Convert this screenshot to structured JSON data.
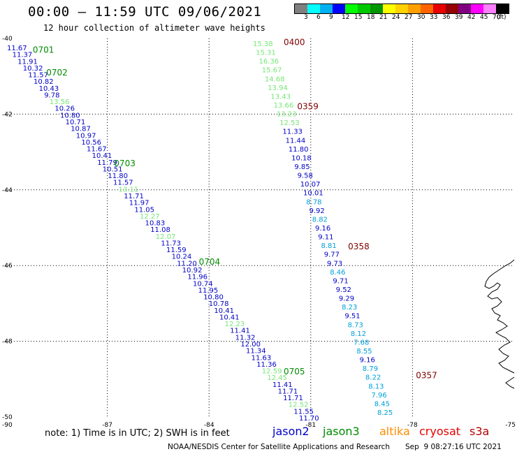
{
  "header": {
    "title": "00:00 – 11:59 UTC 09/06/2021",
    "subtitle": "12 hour collection of altimeter wave heights"
  },
  "legend": {
    "unit": "(ft)",
    "colors": [
      "#808080",
      "#00ffff",
      "#00b0f0",
      "#0000ff",
      "#00ff00",
      "#00c800",
      "#009600",
      "#ffff00",
      "#ffd200",
      "#ffa000",
      "#ff6400",
      "#e60000",
      "#960000",
      "#800080",
      "#ff00ff",
      "#ff80ff",
      "#000000"
    ],
    "labels": [
      "3",
      "6",
      "9",
      "12",
      "15",
      "18",
      "21",
      "24",
      "27",
      "30",
      "33",
      "36",
      "39",
      "42",
      "45",
      "70"
    ]
  },
  "axes": {
    "x_ticks": [
      {
        "lon": -90,
        "label": "-90"
      },
      {
        "lon": -87,
        "label": "-87"
      },
      {
        "lon": -84,
        "label": "-84"
      },
      {
        "lon": -81,
        "label": "-81"
      },
      {
        "lon": -78,
        "label": "-78"
      },
      {
        "lon": -75,
        "label": "-75"
      }
    ],
    "y_ticks": [
      {
        "lat": -40,
        "label": "-40"
      },
      {
        "lat": -42,
        "label": "-42"
      },
      {
        "lat": -44,
        "label": "-44"
      },
      {
        "lat": -46,
        "label": "-46"
      },
      {
        "lat": -48,
        "label": "-48"
      },
      {
        "lat": -50,
        "label": "-50"
      }
    ]
  },
  "palette": {
    "jason2": "#0000c8",
    "jason3": "#008c00",
    "altika": "#ff8c00",
    "cryosat": "#e60000",
    "s3a": "#b40000",
    "time_west": "#008c00",
    "time_east": "#800000",
    "swh_blue": "#0000c8",
    "swh_cyan": "#00a0d8",
    "swh_green": "#78e678"
  },
  "tracks": [
    {
      "name": "west",
      "times": [
        {
          "text": "0701",
          "lon": -89.2,
          "lat": -40.3
        },
        {
          "text": "0702",
          "lon": -88.8,
          "lat": -40.9
        },
        {
          "text": "0703",
          "lon": -86.8,
          "lat": -43.3
        },
        {
          "text": "0704",
          "lon": -84.3,
          "lat": -45.9
        },
        {
          "text": "0705",
          "lon": -81.8,
          "lat": -48.8
        }
      ],
      "swh": [
        {
          "v": "11.67",
          "c": "blue"
        },
        {
          "v": "11.37",
          "c": "blue"
        },
        {
          "v": "11.91",
          "c": "blue"
        },
        {
          "v": "10.32",
          "c": "blue"
        },
        {
          "v": "11.57",
          "c": "blue"
        },
        {
          "v": "10.82",
          "c": "blue"
        },
        {
          "v": "10.43",
          "c": "blue"
        },
        {
          "v": "9.78",
          "c": "blue"
        },
        {
          "v": "13.56",
          "c": "green"
        },
        {
          "v": "10.26",
          "c": "blue"
        },
        {
          "v": "10.80",
          "c": "blue"
        },
        {
          "v": "10.71",
          "c": "blue"
        },
        {
          "v": "10.87",
          "c": "blue"
        },
        {
          "v": "10.97",
          "c": "blue"
        },
        {
          "v": "10.56",
          "c": "blue"
        },
        {
          "v": "11.67",
          "c": "blue"
        },
        {
          "v": "10.41",
          "c": "blue"
        },
        {
          "v": "11.79",
          "c": "blue"
        },
        {
          "v": "10.51",
          "c": "blue"
        },
        {
          "v": "11.80",
          "c": "blue"
        },
        {
          "v": "11.57",
          "c": "blue"
        },
        {
          "v": "13.11",
          "c": "green"
        },
        {
          "v": "11.71",
          "c": "blue"
        },
        {
          "v": "11.97",
          "c": "blue"
        },
        {
          "v": "11.05",
          "c": "blue"
        },
        {
          "v": "12.27",
          "c": "green"
        },
        {
          "v": "10.83",
          "c": "blue"
        },
        {
          "v": "11.08",
          "c": "blue"
        },
        {
          "v": "12.07",
          "c": "green"
        },
        {
          "v": "11.73",
          "c": "blue"
        },
        {
          "v": "11.59",
          "c": "blue"
        },
        {
          "v": "10.24",
          "c": "blue"
        },
        {
          "v": "11.20",
          "c": "blue"
        },
        {
          "v": "10.92",
          "c": "blue"
        },
        {
          "v": "11.96",
          "c": "blue"
        },
        {
          "v": "10.74",
          "c": "blue"
        },
        {
          "v": "11.95",
          "c": "blue"
        },
        {
          "v": "10.80",
          "c": "blue"
        },
        {
          "v": "10.78",
          "c": "blue"
        },
        {
          "v": "10.41",
          "c": "blue"
        },
        {
          "v": "10.41",
          "c": "blue"
        },
        {
          "v": "12.23",
          "c": "green"
        },
        {
          "v": "11.41",
          "c": "blue"
        },
        {
          "v": "11.32",
          "c": "blue"
        },
        {
          "v": "12.00",
          "c": "blue"
        },
        {
          "v": "11.34",
          "c": "blue"
        },
        {
          "v": "11.63",
          "c": "blue"
        },
        {
          "v": "11.36",
          "c": "blue"
        },
        {
          "v": "12.59",
          "c": "green"
        },
        {
          "v": "12.45",
          "c": "green"
        },
        {
          "v": "11.41",
          "c": "blue"
        },
        {
          "v": "11.71",
          "c": "blue"
        },
        {
          "v": "11.71",
          "c": "blue"
        },
        {
          "v": "12.52",
          "c": "green"
        },
        {
          "v": "11.55",
          "c": "blue"
        },
        {
          "v": "11.70",
          "c": "blue"
        }
      ]
    },
    {
      "name": "east",
      "times": [
        {
          "text": "0400",
          "lon": -81.8,
          "lat": -40.1
        },
        {
          "text": "0359",
          "lon": -81.4,
          "lat": -41.8
        },
        {
          "text": "0358",
          "lon": -79.9,
          "lat": -45.5
        },
        {
          "text": "0357",
          "lon": -77.9,
          "lat": -48.9
        }
      ],
      "swh": [
        {
          "v": "15.38",
          "c": "green"
        },
        {
          "v": "15.31",
          "c": "green"
        },
        {
          "v": "16.36",
          "c": "green"
        },
        {
          "v": "15.67",
          "c": "green"
        },
        {
          "v": "14.68",
          "c": "green"
        },
        {
          "v": "13.94",
          "c": "green"
        },
        {
          "v": "13.43",
          "c": "green"
        },
        {
          "v": "13.66",
          "c": "green"
        },
        {
          "v": "13.23",
          "c": "green"
        },
        {
          "v": "12.53",
          "c": "green"
        },
        {
          "v": "11.33",
          "c": "blue"
        },
        {
          "v": "11.44",
          "c": "blue"
        },
        {
          "v": "11.80",
          "c": "blue"
        },
        {
          "v": "10.18",
          "c": "blue"
        },
        {
          "v": "9.85",
          "c": "blue"
        },
        {
          "v": "9.58",
          "c": "blue"
        },
        {
          "v": "10.07",
          "c": "blue"
        },
        {
          "v": "10.01",
          "c": "blue"
        },
        {
          "v": "8.78",
          "c": "cyan"
        },
        {
          "v": "9.92",
          "c": "blue"
        },
        {
          "v": "8.82",
          "c": "cyan"
        },
        {
          "v": "9.16",
          "c": "blue"
        },
        {
          "v": "9.11",
          "c": "blue"
        },
        {
          "v": "8.81",
          "c": "cyan"
        },
        {
          "v": "9.77",
          "c": "blue"
        },
        {
          "v": "9.73",
          "c": "blue"
        },
        {
          "v": "8.46",
          "c": "cyan"
        },
        {
          "v": "9.71",
          "c": "blue"
        },
        {
          "v": "9.52",
          "c": "blue"
        },
        {
          "v": "9.29",
          "c": "blue"
        },
        {
          "v": "8.23",
          "c": "cyan"
        },
        {
          "v": "9.51",
          "c": "blue"
        },
        {
          "v": "8.73",
          "c": "cyan"
        },
        {
          "v": "8.12",
          "c": "cyan"
        },
        {
          "v": "7.68",
          "c": "cyan"
        },
        {
          "v": "8.55",
          "c": "cyan"
        },
        {
          "v": "9.16",
          "c": "blue"
        },
        {
          "v": "8.79",
          "c": "cyan"
        },
        {
          "v": "8.22",
          "c": "cyan"
        },
        {
          "v": "8.13",
          "c": "cyan"
        },
        {
          "v": "7.96",
          "c": "cyan"
        },
        {
          "v": "8.45",
          "c": "cyan"
        },
        {
          "v": "8.25",
          "c": "cyan"
        }
      ]
    }
  ],
  "footer": {
    "note": "note: 1) Time is in UTC; 2) SWH is in feet",
    "satellites": [
      {
        "name": "jason2",
        "color_key": "jason2"
      },
      {
        "name": "jason3",
        "color_key": "jason3"
      },
      {
        "name": "altika",
        "color_key": "altika"
      },
      {
        "name": "cryosat",
        "color_key": "cryosat"
      },
      {
        "name": "s3a",
        "color_key": "s3a"
      }
    ],
    "credit": "NOAA/NESDIS Center for Satellite Applications and Research",
    "timestamp": "Sep  9 08:27:16 UTC 2021"
  }
}
